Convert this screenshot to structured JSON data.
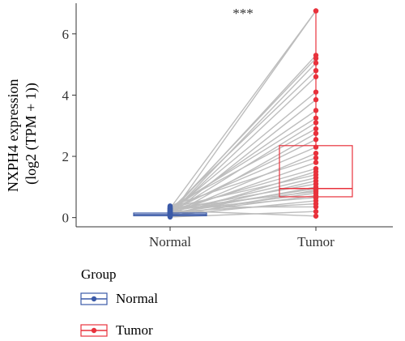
{
  "chart_data": {
    "type": "box",
    "title": "",
    "paired": true,
    "ylabel_lines": [
      "NXPH4 expression",
      "(log2 (TPM + 1))"
    ],
    "ylim": [
      -0.3,
      7.0
    ],
    "yticks": [
      0,
      2,
      4,
      6
    ],
    "ytick_labels": [
      "0",
      "2",
      "4",
      "6"
    ],
    "categories": [
      "Normal",
      "Tumor"
    ],
    "significance": "***",
    "legend": {
      "title": "Group",
      "position": "bottom-left",
      "entries": [
        "Normal",
        "Tumor"
      ]
    },
    "colors": {
      "Normal": "#3b5aa8",
      "Tumor": "#e8323c",
      "pair_line": "#bdbdbd"
    },
    "boxes": {
      "Normal": {
        "q1": 0.06,
        "median": 0.1,
        "q3": 0.15,
        "whisker_low": 0.0,
        "whisker_high": 0.38
      },
      "Tumor": {
        "q1": 0.68,
        "median": 0.95,
        "q3": 2.35,
        "whisker_low": 0.05,
        "whisker_high": 6.75
      }
    },
    "pairs": [
      [
        0.05,
        6.75
      ],
      [
        0.3,
        6.75
      ],
      [
        0.15,
        5.3
      ],
      [
        0.2,
        5.2
      ],
      [
        0.1,
        5.05
      ],
      [
        0.25,
        4.8
      ],
      [
        0.12,
        4.6
      ],
      [
        0.18,
        4.1
      ],
      [
        0.08,
        3.85
      ],
      [
        0.22,
        3.5
      ],
      [
        0.3,
        3.25
      ],
      [
        0.15,
        3.1
      ],
      [
        0.35,
        2.9
      ],
      [
        0.05,
        2.75
      ],
      [
        0.2,
        2.55
      ],
      [
        0.28,
        2.3
      ],
      [
        0.1,
        2.1
      ],
      [
        0.38,
        1.95
      ],
      [
        0.14,
        1.8
      ],
      [
        0.24,
        1.6
      ],
      [
        0.06,
        1.5
      ],
      [
        0.32,
        1.4
      ],
      [
        0.18,
        1.3
      ],
      [
        0.09,
        1.2
      ],
      [
        0.26,
        1.1
      ],
      [
        0.13,
        1.0
      ],
      [
        0.21,
        0.95
      ],
      [
        0.04,
        0.9
      ],
      [
        0.3,
        0.85
      ],
      [
        0.16,
        0.8
      ],
      [
        0.11,
        0.72
      ],
      [
        0.27,
        0.65
      ],
      [
        0.07,
        0.55
      ],
      [
        0.19,
        0.45
      ],
      [
        0.34,
        0.35
      ],
      [
        0.02,
        0.2
      ],
      [
        0.23,
        0.05
      ]
    ]
  }
}
